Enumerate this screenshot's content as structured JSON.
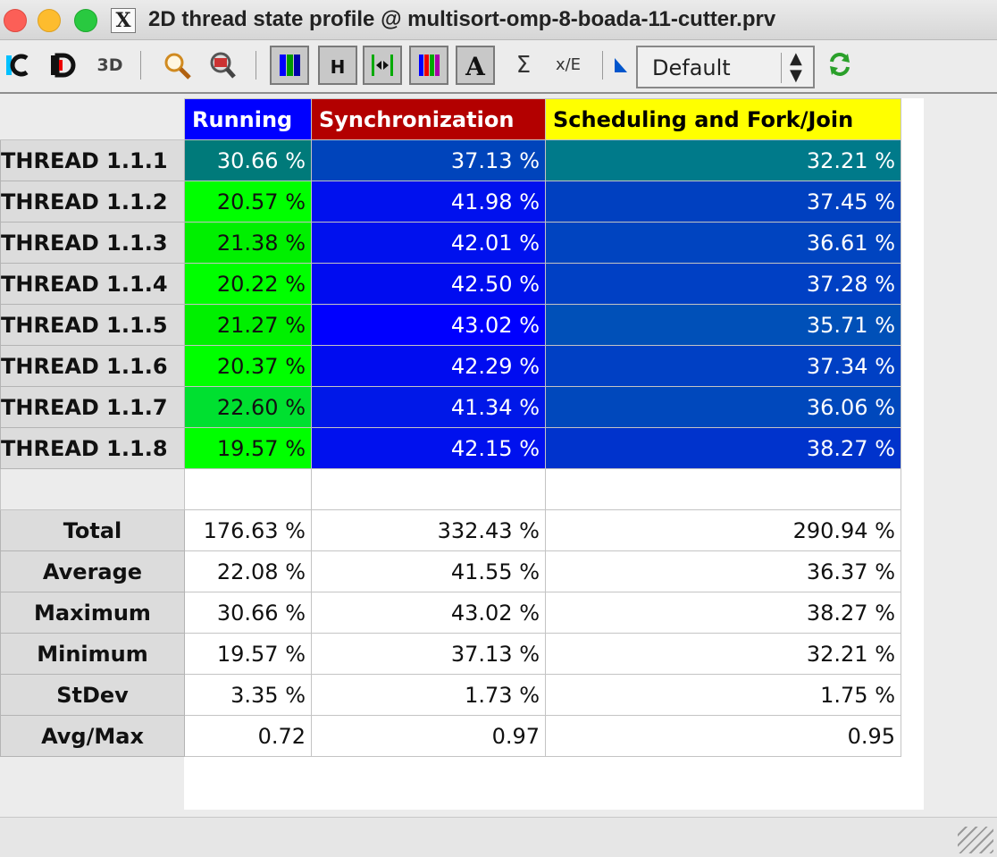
{
  "window": {
    "title": "2D thread state profile @ multisort-omp-8-boada-11-cutter.prv",
    "x_icon_label": "X"
  },
  "toolbar": {
    "combo_value": "Default",
    "icons": [
      "open-control-icon",
      "open-data-icon",
      "open-3d-icon",
      "zoom-icon",
      "zoom-fit-icon",
      "color-mode-icon",
      "horizontal-icon",
      "hide-empty-icon",
      "gradient-icon",
      "label-icon",
      "sum-icon",
      "fraction-icon",
      "sort-icon",
      "refresh-icon"
    ],
    "buttons": {
      "horizontal": "H",
      "sigma": "Σ",
      "fraction": "x/E",
      "label": "A",
      "d3": "3D",
      "c": "C",
      "d": "D"
    }
  },
  "table": {
    "headers": [
      "Running",
      "Synchronization",
      "Scheduling and Fork/Join"
    ],
    "header_colors": [
      "#0000ff",
      "#b30000",
      "#ffff00"
    ],
    "rows": [
      {
        "label": "THREAD 1.1.1",
        "values": [
          "30.66 %",
          "37.13 %",
          "32.21 %"
        ],
        "colors": [
          "#007a7a",
          "#0044bb",
          "#007a8a"
        ]
      },
      {
        "label": "THREAD 1.1.2",
        "values": [
          "20.57 %",
          "41.98 %",
          "37.45 %"
        ],
        "colors": [
          "#00ff00",
          "#0011ee",
          "#0040c0"
        ]
      },
      {
        "label": "THREAD 1.1.3",
        "values": [
          "21.38 %",
          "42.01 %",
          "36.61 %"
        ],
        "colors": [
          "#00f000",
          "#0011ee",
          "#0044c0"
        ]
      },
      {
        "label": "THREAD 1.1.4",
        "values": [
          "20.22 %",
          "42.50 %",
          "37.28 %"
        ],
        "colors": [
          "#00ff00",
          "#000cf0",
          "#0040c4"
        ]
      },
      {
        "label": "THREAD 1.1.5",
        "values": [
          "21.27 %",
          "43.02 %",
          "35.71 %"
        ],
        "colors": [
          "#00f000",
          "#0000ff",
          "#0050b8"
        ]
      },
      {
        "label": "THREAD 1.1.6",
        "values": [
          "20.37 %",
          "42.29 %",
          "37.34 %"
        ],
        "colors": [
          "#00ff00",
          "#000cf0",
          "#0040c4"
        ]
      },
      {
        "label": "THREAD 1.1.7",
        "values": [
          "22.60 %",
          "41.34 %",
          "36.06 %"
        ],
        "colors": [
          "#00e030",
          "#0018e8",
          "#0048bc"
        ]
      },
      {
        "label": "THREAD 1.1.8",
        "values": [
          "19.57 %",
          "42.15 %",
          "38.27 %"
        ],
        "colors": [
          "#00ff00",
          "#0011ee",
          "#0033cc"
        ]
      }
    ],
    "stats": [
      {
        "label": "Total",
        "values": [
          "176.63 %",
          "332.43 %",
          "290.94 %"
        ]
      },
      {
        "label": "Average",
        "values": [
          "22.08 %",
          "41.55 %",
          "36.37 %"
        ]
      },
      {
        "label": "Maximum",
        "values": [
          "30.66 %",
          "43.02 %",
          "38.27 %"
        ]
      },
      {
        "label": "Minimum",
        "values": [
          "19.57 %",
          "37.13 %",
          "32.21 %"
        ]
      },
      {
        "label": "StDev",
        "values": [
          "3.35 %",
          "1.73 %",
          "1.75 %"
        ]
      },
      {
        "label": "Avg/Max",
        "values": [
          "0.72",
          "0.97",
          "0.95"
        ]
      }
    ]
  }
}
